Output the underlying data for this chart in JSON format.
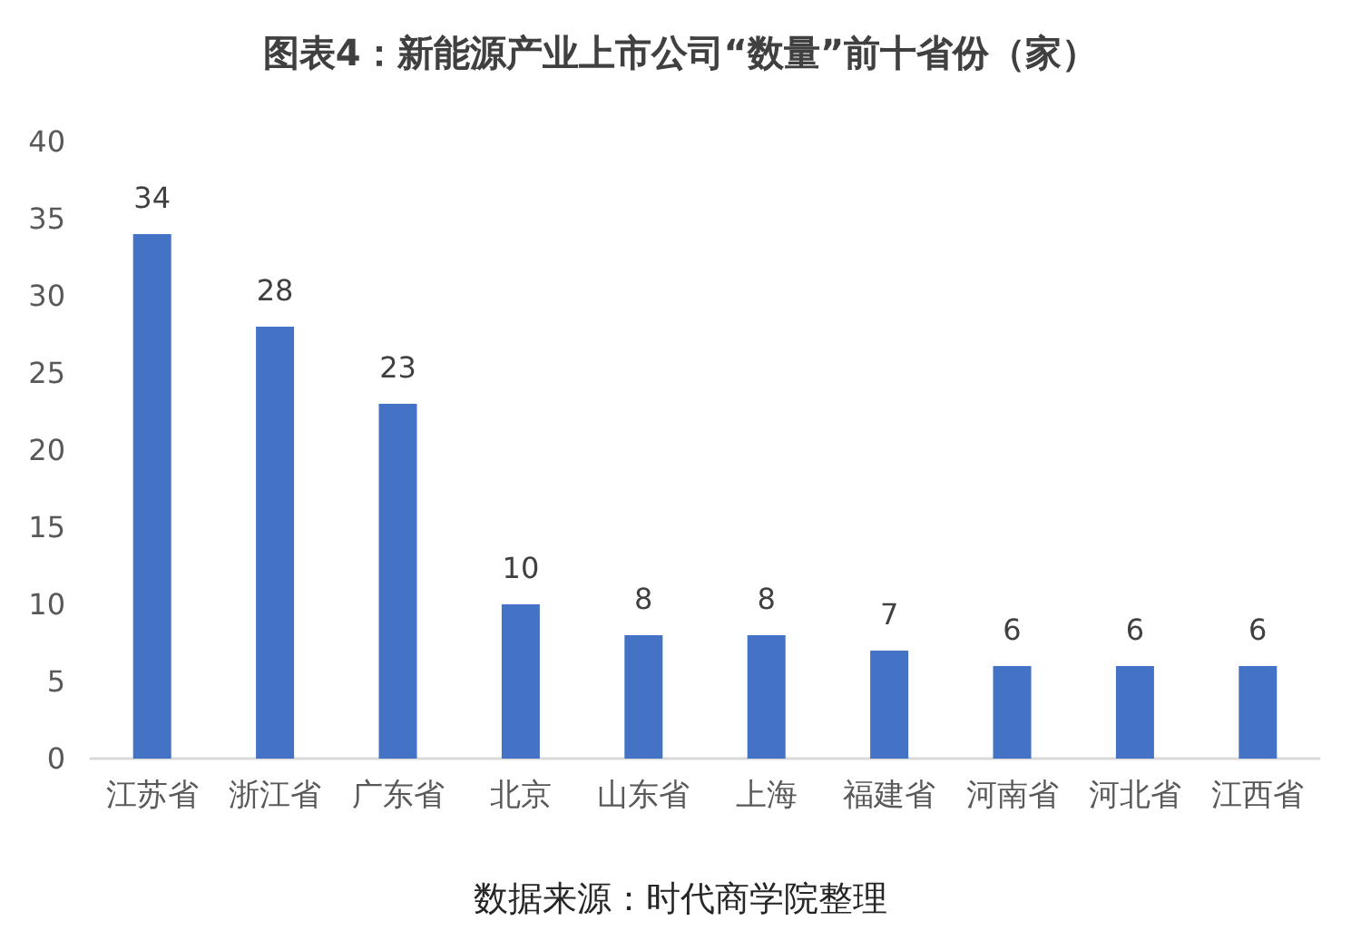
{
  "chart_data": {
    "type": "bar",
    "title": "图表4：新能源产业上市公司“数量”前十省份（家）",
    "categories": [
      "江苏省",
      "浙江省",
      "广东省",
      "北京",
      "山东省",
      "上海",
      "福建省",
      "河南省",
      "河北省",
      "江西省"
    ],
    "values": [
      34,
      28,
      23,
      10,
      8,
      8,
      7,
      6,
      6,
      6
    ],
    "color": "#4472c4",
    "ylim": [
      0,
      40
    ],
    "yticks": [
      0,
      5,
      10,
      15,
      20,
      25,
      30,
      35,
      40
    ],
    "grid": false,
    "data_labels": true,
    "annotations": [
      "数据来源：时代商学院整理"
    ]
  }
}
